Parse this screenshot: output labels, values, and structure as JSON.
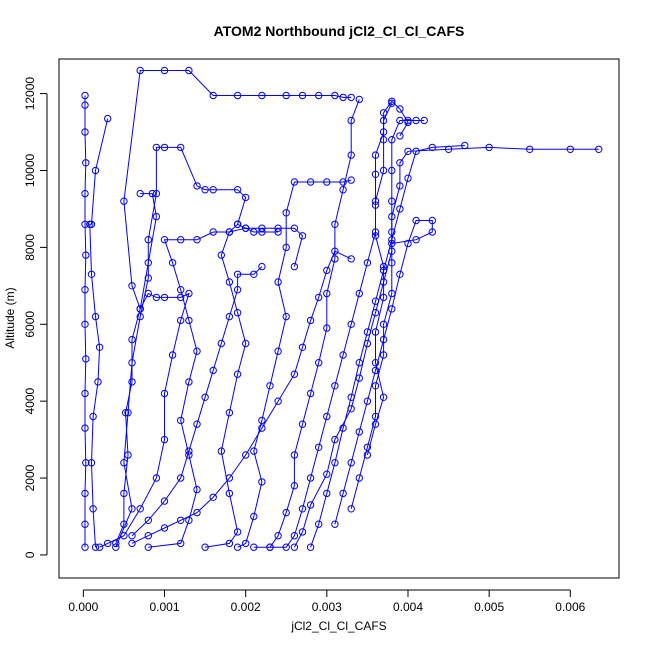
{
  "chart_data": {
    "type": "scatter",
    "title": "ATOM2 Northbound jCl2_Cl_Cl_CAFS",
    "xlabel": "jCl2_Cl_Cl_CAFS",
    "ylabel": "Altitude (m)",
    "xlim": [
      -0.0003,
      0.0066
    ],
    "ylim": [
      -600,
      12900
    ],
    "xticks": [
      "0.000",
      "0.001",
      "0.002",
      "0.003",
      "0.004",
      "0.005",
      "0.006"
    ],
    "yticks": [
      "0",
      "2000",
      "4000",
      "6000",
      "8000",
      "10000",
      "12000"
    ],
    "grid": false,
    "legend": "none",
    "marker": "open-circle",
    "connect_points": true,
    "series_color": "#0000ff",
    "series": [
      {
        "name": "",
        "points": [
          [
            2e-05,
            200
          ],
          [
            2e-05,
            800
          ],
          [
            2e-05,
            1600
          ],
          [
            3e-05,
            2400
          ],
          [
            2e-05,
            3300
          ],
          [
            2e-05,
            4200
          ],
          [
            3e-05,
            5100
          ],
          [
            2e-05,
            6000
          ],
          [
            2e-05,
            6900
          ],
          [
            3e-05,
            7800
          ],
          [
            2e-05,
            8600
          ],
          [
            2e-05,
            9400
          ],
          [
            3e-05,
            10200
          ],
          [
            2e-05,
            11000
          ],
          [
            2e-05,
            11700
          ],
          [
            2e-05,
            11950
          ]
        ]
      },
      {
        "name": "",
        "points": [
          [
            0.00015,
            200
          ],
          [
            0.00012,
            1200
          ],
          [
            0.0001,
            2400
          ],
          [
            0.00012,
            3600
          ],
          [
            0.00018,
            4500
          ],
          [
            0.0002,
            5400
          ],
          [
            0.00015,
            6200
          ],
          [
            0.0001,
            7300
          ],
          [
            8e-05,
            8600
          ],
          [
            0.0001,
            8600
          ],
          [
            0.00015,
            10000
          ],
          [
            0.0003,
            11350
          ]
        ]
      },
      {
        "name": "",
        "points": [
          [
            0.0004,
            300
          ],
          [
            0.0005,
            800
          ],
          [
            0.0005,
            1600
          ],
          [
            0.00055,
            2600
          ],
          [
            0.00052,
            3700
          ],
          [
            0.0006,
            4500
          ],
          [
            0.0006,
            5600
          ],
          [
            0.0007,
            6400
          ],
          [
            0.0008,
            7600
          ],
          [
            0.0009,
            8800
          ],
          [
            0.00085,
            9400
          ],
          [
            0.0007,
            9400
          ]
        ]
      },
      {
        "name": "",
        "points": [
          [
            0.0004,
            200
          ],
          [
            0.0006,
            1200
          ],
          [
            0.0005,
            2400
          ],
          [
            0.00055,
            3700
          ],
          [
            0.0006,
            5000
          ],
          [
            0.0007,
            6200
          ],
          [
            0.0008,
            7200
          ],
          [
            0.0008,
            8200
          ],
          [
            0.0009,
            9400
          ],
          [
            0.0009,
            10600
          ],
          [
            0.001,
            10600
          ],
          [
            0.0012,
            10600
          ],
          [
            0.0014,
            9600
          ],
          [
            0.0015,
            9500
          ],
          [
            0.0016,
            9500
          ],
          [
            0.0019,
            9500
          ],
          [
            0.002,
            9300
          ],
          [
            0.0019,
            8600
          ]
        ]
      },
      {
        "name": "",
        "points": [
          [
            0.0002,
            200
          ],
          [
            0.0003,
            300
          ],
          [
            0.0005,
            500
          ],
          [
            0.0007,
            1200
          ],
          [
            0.0009,
            2000
          ],
          [
            0.001,
            3000
          ],
          [
            0.001,
            4200
          ],
          [
            0.0011,
            5200
          ],
          [
            0.0012,
            6100
          ],
          [
            0.0013,
            6800
          ],
          [
            0.0012,
            6700
          ],
          [
            0.001,
            6700
          ],
          [
            0.0009,
            6700
          ],
          [
            0.0008,
            6800
          ],
          [
            0.0007,
            6400
          ],
          [
            0.0006,
            7000
          ],
          [
            0.0005,
            9200
          ],
          [
            0.0007,
            12600
          ],
          [
            0.001,
            12600
          ],
          [
            0.0013,
            12600
          ],
          [
            0.0016,
            11950
          ],
          [
            0.0019,
            11950
          ],
          [
            0.0022,
            11950
          ],
          [
            0.0025,
            11950
          ],
          [
            0.0027,
            11950
          ],
          [
            0.0029,
            11950
          ],
          [
            0.0031,
            11950
          ],
          [
            0.0032,
            11900
          ],
          [
            0.0033,
            11900
          ]
        ]
      },
      {
        "name": "",
        "points": [
          [
            0.0008,
            200
          ],
          [
            0.0012,
            300
          ],
          [
            0.0013,
            900
          ],
          [
            0.0014,
            1700
          ],
          [
            0.0013,
            2600
          ],
          [
            0.0012,
            3500
          ],
          [
            0.0013,
            4500
          ],
          [
            0.0014,
            5300
          ],
          [
            0.0013,
            6100
          ],
          [
            0.0012,
            6900
          ],
          [
            0.0011,
            7600
          ],
          [
            0.001,
            8200
          ],
          [
            0.0012,
            8200
          ],
          [
            0.0014,
            8200
          ],
          [
            0.0016,
            8400
          ],
          [
            0.0018,
            8400
          ],
          [
            0.002,
            8500
          ],
          [
            0.0022,
            8500
          ],
          [
            0.0024,
            8500
          ],
          [
            0.0026,
            8500
          ],
          [
            0.0027,
            8300
          ],
          [
            0.0026,
            7500
          ]
        ]
      },
      {
        "name": "",
        "points": [
          [
            0.0015,
            200
          ],
          [
            0.0018,
            300
          ],
          [
            0.0019,
            600
          ],
          [
            0.0018,
            1600
          ],
          [
            0.0017,
            2700
          ],
          [
            0.0018,
            3700
          ],
          [
            0.0019,
            4700
          ],
          [
            0.002,
            5500
          ],
          [
            0.0019,
            6300
          ],
          [
            0.0018,
            7100
          ],
          [
            0.0017,
            7800
          ],
          [
            0.0018,
            8400
          ],
          [
            0.0019,
            8600
          ],
          [
            0.002,
            8500
          ],
          [
            0.0021,
            8400
          ],
          [
            0.0022,
            8400
          ],
          [
            0.0024,
            8400
          ]
        ]
      },
      {
        "name": "",
        "points": [
          [
            0.0019,
            200
          ],
          [
            0.002,
            300
          ],
          [
            0.0021,
            1000
          ],
          [
            0.0022,
            1900
          ],
          [
            0.0021,
            2700
          ],
          [
            0.0022,
            3500
          ],
          [
            0.0023,
            4400
          ],
          [
            0.0024,
            5300
          ],
          [
            0.0025,
            6200
          ],
          [
            0.0024,
            7100
          ],
          [
            0.0025,
            8000
          ],
          [
            0.0025,
            8900
          ],
          [
            0.0026,
            9700
          ],
          [
            0.0028,
            9700
          ],
          [
            0.003,
            9700
          ],
          [
            0.0032,
            9700
          ],
          [
            0.0033,
            9750
          ]
        ]
      },
      {
        "name": "",
        "points": [
          [
            0.0021,
            200
          ],
          [
            0.0023,
            200
          ],
          [
            0.0024,
            500
          ],
          [
            0.0025,
            1100
          ],
          [
            0.0026,
            1800
          ],
          [
            0.0026,
            2600
          ],
          [
            0.0027,
            3400
          ],
          [
            0.0028,
            4200
          ],
          [
            0.0029,
            5000
          ],
          [
            0.003,
            5900
          ],
          [
            0.003,
            6800
          ],
          [
            0.0031,
            7700
          ],
          [
            0.0031,
            8600
          ],
          [
            0.0032,
            9500
          ],
          [
            0.0033,
            10400
          ],
          [
            0.0033,
            11300
          ],
          [
            0.0034,
            11850
          ]
        ]
      },
      {
        "name": "",
        "points": [
          [
            0.0023,
            200
          ],
          [
            0.0025,
            200
          ],
          [
            0.0026,
            500
          ],
          [
            0.0027,
            1200
          ],
          [
            0.0028,
            2000
          ],
          [
            0.0029,
            2800
          ],
          [
            0.003,
            3600
          ],
          [
            0.0031,
            4400
          ],
          [
            0.0032,
            5200
          ],
          [
            0.0033,
            6000
          ],
          [
            0.0034,
            6800
          ],
          [
            0.0035,
            7600
          ],
          [
            0.0036,
            8400
          ],
          [
            0.0036,
            9200
          ],
          [
            0.0037,
            10000
          ],
          [
            0.0037,
            10800
          ],
          [
            0.0037,
            11300
          ],
          [
            0.0038,
            11750
          ]
        ]
      },
      {
        "name": "",
        "points": [
          [
            0.0026,
            200
          ],
          [
            0.0027,
            600
          ],
          [
            0.0028,
            1300
          ],
          [
            0.003,
            2100
          ],
          [
            0.0031,
            3000
          ],
          [
            0.0033,
            3800
          ],
          [
            0.0034,
            4600
          ],
          [
            0.0035,
            5500
          ],
          [
            0.0036,
            6300
          ],
          [
            0.0037,
            7100
          ],
          [
            0.0038,
            7900
          ],
          [
            0.0038,
            8800
          ],
          [
            0.0039,
            9600
          ],
          [
            0.0039,
            10200
          ],
          [
            0.004,
            10500
          ],
          [
            0.0045,
            10550
          ],
          [
            0.005,
            10600
          ],
          [
            0.0055,
            10550
          ],
          [
            0.006,
            10550
          ],
          [
            0.00635,
            10550
          ]
        ]
      },
      {
        "name": "",
        "points": [
          [
            0.0028,
            200
          ],
          [
            0.0029,
            800
          ],
          [
            0.003,
            1600
          ],
          [
            0.0031,
            2400
          ],
          [
            0.0032,
            3300
          ],
          [
            0.0033,
            4100
          ],
          [
            0.0034,
            5000
          ],
          [
            0.0035,
            5800
          ],
          [
            0.0036,
            6600
          ],
          [
            0.0037,
            7400
          ],
          [
            0.0038,
            8200
          ],
          [
            0.0039,
            9000
          ],
          [
            0.004,
            9800
          ],
          [
            0.0041,
            10500
          ],
          [
            0.0043,
            10600
          ],
          [
            0.0047,
            10650
          ]
        ]
      },
      {
        "name": "",
        "points": [
          [
            0.0031,
            800
          ],
          [
            0.0032,
            1600
          ],
          [
            0.0033,
            2400
          ],
          [
            0.0034,
            3200
          ],
          [
            0.0035,
            4000
          ],
          [
            0.0036,
            4800
          ],
          [
            0.0037,
            5600
          ],
          [
            0.0038,
            6400
          ],
          [
            0.0039,
            7300
          ],
          [
            0.004,
            8100
          ],
          [
            0.0041,
            8700
          ],
          [
            0.0043,
            8700
          ],
          [
            0.0043,
            8400
          ],
          [
            0.0041,
            8200
          ],
          [
            0.0038,
            8100
          ]
        ]
      },
      {
        "name": "",
        "points": [
          [
            0.0033,
            1200
          ],
          [
            0.0034,
            2000
          ],
          [
            0.0035,
            2800
          ],
          [
            0.0036,
            3600
          ],
          [
            0.0036,
            4400
          ],
          [
            0.0037,
            5200
          ],
          [
            0.0037,
            6000
          ],
          [
            0.0038,
            6800
          ],
          [
            0.0038,
            7600
          ],
          [
            0.0038,
            8400
          ],
          [
            0.0038,
            9200
          ],
          [
            0.0038,
            10000
          ],
          [
            0.0038,
            10800
          ],
          [
            0.0039,
            11300
          ],
          [
            0.004,
            11300
          ],
          [
            0.0041,
            11300
          ],
          [
            0.0042,
            11300
          ]
        ]
      },
      {
        "name": "",
        "points": [
          [
            0.0035,
            2600
          ],
          [
            0.0036,
            3400
          ],
          [
            0.0037,
            4100
          ],
          [
            0.0036,
            5000
          ],
          [
            0.0036,
            5800
          ],
          [
            0.0037,
            6700
          ],
          [
            0.0037,
            7500
          ],
          [
            0.0036,
            8300
          ],
          [
            0.0036,
            9100
          ],
          [
            0.0036,
            9900
          ],
          [
            0.0036,
            10400
          ],
          [
            0.0037,
            11000
          ],
          [
            0.0037,
            11500
          ],
          [
            0.0038,
            11800
          ],
          [
            0.0039,
            11600
          ],
          [
            0.004,
            11250
          ],
          [
            0.0039,
            10900
          ]
        ]
      },
      {
        "name": "",
        "points": [
          [
            0.0006,
            300
          ],
          [
            0.0008,
            500
          ],
          [
            0.001,
            700
          ],
          [
            0.0012,
            900
          ],
          [
            0.0014,
            1100
          ],
          [
            0.0016,
            1500
          ],
          [
            0.0018,
            2000
          ],
          [
            0.002,
            2600
          ],
          [
            0.0022,
            3300
          ],
          [
            0.0024,
            4000
          ],
          [
            0.0026,
            4700
          ],
          [
            0.0027,
            5400
          ],
          [
            0.0028,
            6100
          ],
          [
            0.0029,
            6700
          ],
          [
            0.003,
            7400
          ],
          [
            0.0031,
            7900
          ],
          [
            0.0033,
            7700
          ]
        ]
      },
      {
        "name": "",
        "points": [
          [
            0.0006,
            500
          ],
          [
            0.0008,
            900
          ],
          [
            0.001,
            1400
          ],
          [
            0.0012,
            2000
          ],
          [
            0.0013,
            2700
          ],
          [
            0.0014,
            3400
          ],
          [
            0.0015,
            4100
          ],
          [
            0.0016,
            4800
          ],
          [
            0.0017,
            5500
          ],
          [
            0.0018,
            6200
          ],
          [
            0.0019,
            6900
          ],
          [
            0.0019,
            7300
          ],
          [
            0.0021,
            7300
          ],
          [
            0.0022,
            7500
          ]
        ]
      }
    ]
  }
}
